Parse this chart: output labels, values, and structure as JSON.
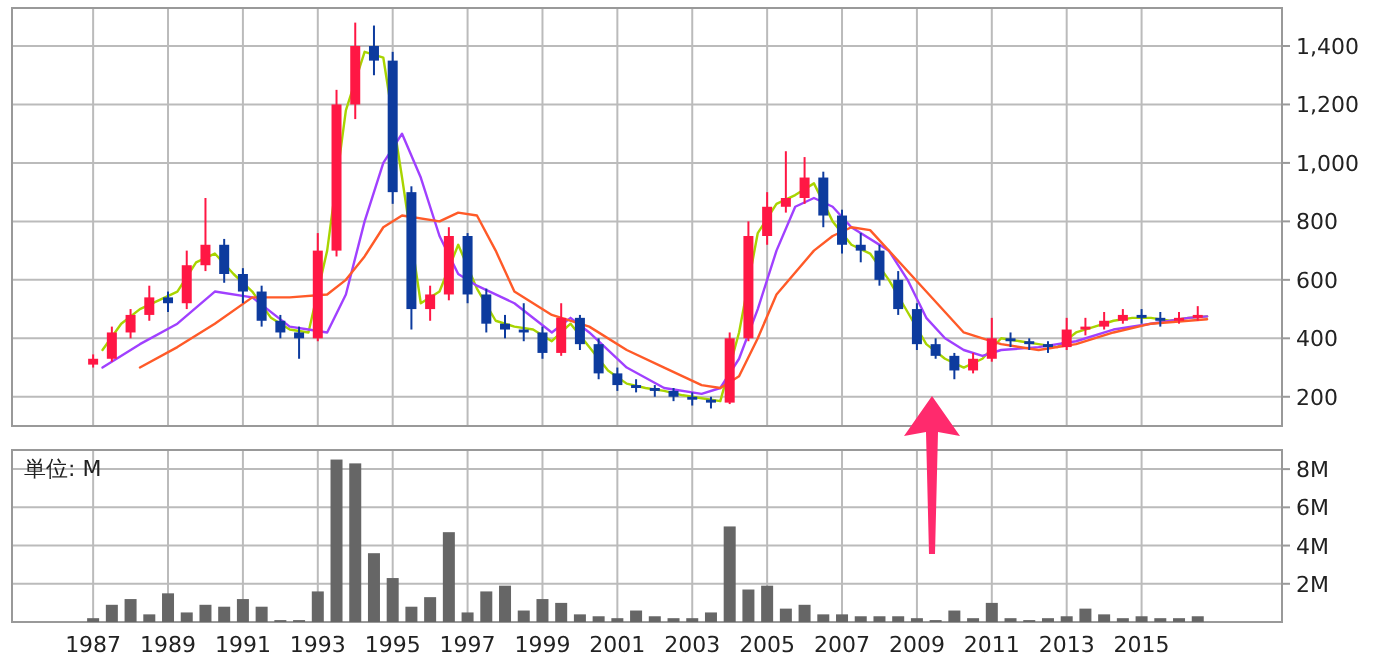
{
  "chart_data": [
    {
      "type": "candlestick",
      "tick_labels": "y",
      "grid": true,
      "xlim": [
        "1984-11",
        "2018-10"
      ],
      "xticks": [
        "1987",
        "1989",
        "1991",
        "1993",
        "1995",
        "1997",
        "1999",
        "2001",
        "2003",
        "2005",
        "2007",
        "2009",
        "2011",
        "2013",
        "2015"
      ],
      "ylim": [
        100,
        1530
      ],
      "yticks": [
        200,
        400,
        600,
        800,
        {
          "value": 1000,
          "label": "1,000"
        },
        {
          "value": 1200,
          "label": "1,200"
        },
        {
          "value": 1400,
          "label": "1,400"
        }
      ],
      "x": [
        "1987-01",
        "1987-07",
        "1988-01",
        "1988-07",
        "1989-01",
        "1989-07",
        "1990-01",
        "1990-07",
        "1991-01",
        "1991-07",
        "1992-01",
        "1992-07",
        "1993-01",
        "1993-07",
        "1994-01",
        "1994-07",
        "1995-01",
        "1995-07",
        "1996-01",
        "1996-07",
        "1997-01",
        "1997-07",
        "1998-01",
        "1998-07",
        "1999-01",
        "1999-07",
        "2000-01",
        "2000-07",
        "2001-01",
        "2001-07",
        "2002-01",
        "2002-07",
        "2003-01",
        "2003-07",
        "2004-01",
        "2004-07",
        "2005-01",
        "2005-07",
        "2006-01",
        "2006-07",
        "2007-01",
        "2007-07",
        "2008-01",
        "2008-07",
        "2009-01",
        "2009-07",
        "2010-01",
        "2010-07",
        "2011-01",
        "2011-07",
        "2012-01",
        "2012-07",
        "2013-01",
        "2013-07",
        "2014-01",
        "2014-07",
        "2015-01",
        "2015-07",
        "2016-01",
        "2016-07"
      ],
      "ohlc": [
        [
          310,
          345,
          300,
          330
        ],
        [
          330,
          440,
          320,
          420
        ],
        [
          420,
          500,
          400,
          480
        ],
        [
          480,
          580,
          460,
          540
        ],
        [
          540,
          560,
          490,
          520
        ],
        [
          520,
          700,
          500,
          650
        ],
        [
          650,
          880,
          630,
          720
        ],
        [
          720,
          740,
          590,
          620
        ],
        [
          620,
          640,
          520,
          560
        ],
        [
          560,
          580,
          440,
          460
        ],
        [
          460,
          480,
          400,
          420
        ],
        [
          420,
          440,
          330,
          400
        ],
        [
          400,
          760,
          390,
          700
        ],
        [
          700,
          1250,
          680,
          1200
        ],
        [
          1200,
          1480,
          1150,
          1400
        ],
        [
          1400,
          1470,
          1300,
          1350
        ],
        [
          1350,
          1380,
          860,
          900
        ],
        [
          900,
          920,
          430,
          500
        ],
        [
          500,
          580,
          460,
          550
        ],
        [
          550,
          780,
          530,
          750
        ],
        [
          750,
          760,
          520,
          550
        ],
        [
          550,
          570,
          420,
          450
        ],
        [
          450,
          480,
          400,
          430
        ],
        [
          430,
          520,
          390,
          420
        ],
        [
          420,
          440,
          330,
          350
        ],
        [
          350,
          520,
          340,
          470
        ],
        [
          470,
          480,
          360,
          380
        ],
        [
          380,
          400,
          260,
          280
        ],
        [
          280,
          300,
          220,
          240
        ],
        [
          240,
          260,
          215,
          230
        ],
        [
          230,
          240,
          200,
          220
        ],
        [
          220,
          230,
          185,
          200
        ],
        [
          200,
          215,
          170,
          190
        ],
        [
          190,
          200,
          160,
          180
        ],
        [
          180,
          420,
          175,
          400
        ],
        [
          400,
          800,
          390,
          750
        ],
        [
          750,
          900,
          720,
          850
        ],
        [
          850,
          1040,
          830,
          880
        ],
        [
          880,
          1020,
          860,
          950
        ],
        [
          950,
          970,
          780,
          820
        ],
        [
          820,
          840,
          690,
          720
        ],
        [
          720,
          760,
          660,
          700
        ],
        [
          700,
          720,
          580,
          600
        ],
        [
          600,
          630,
          480,
          500
        ],
        [
          500,
          520,
          360,
          380
        ],
        [
          380,
          400,
          330,
          340
        ],
        [
          340,
          350,
          260,
          290
        ],
        [
          290,
          350,
          280,
          330
        ],
        [
          330,
          470,
          320,
          400
        ],
        [
          400,
          420,
          370,
          390
        ],
        [
          390,
          400,
          360,
          380
        ],
        [
          380,
          390,
          350,
          370
        ],
        [
          370,
          470,
          360,
          430
        ],
        [
          430,
          470,
          410,
          440
        ],
        [
          440,
          490,
          430,
          460
        ],
        [
          460,
          500,
          450,
          480
        ],
        [
          480,
          500,
          450,
          470
        ],
        [
          470,
          490,
          440,
          460
        ],
        [
          460,
          490,
          450,
          470
        ],
        [
          470,
          510,
          460,
          480
        ]
      ],
      "colors": [
        "#ff1744",
        "#ff1744",
        "#ff1744",
        "#ff1744",
        "#0d3b9e",
        "#ff1744",
        "#ff1744",
        "#0d3b9e",
        "#0d3b9e",
        "#0d3b9e",
        "#0d3b9e",
        "#0d3b9e",
        "#ff1744",
        "#ff1744",
        "#ff1744",
        "#0d3b9e",
        "#0d3b9e",
        "#0d3b9e",
        "#ff1744",
        "#ff1744",
        "#0d3b9e",
        "#0d3b9e",
        "#0d3b9e",
        "#0d3b9e",
        "#0d3b9e",
        "#ff1744",
        "#0d3b9e",
        "#0d3b9e",
        "#0d3b9e",
        "#0d3b9e",
        "#0d3b9e",
        "#0d3b9e",
        "#0d3b9e",
        "#0d3b9e",
        "#ff1744",
        "#ff1744",
        "#ff1744",
        "#ff1744",
        "#ff1744",
        "#0d3b9e",
        "#0d3b9e",
        "#0d3b9e",
        "#0d3b9e",
        "#0d3b9e",
        "#0d3b9e",
        "#0d3b9e",
        "#0d3b9e",
        "#ff1744",
        "#ff1744",
        "#0d3b9e",
        "#0d3b9e",
        "#0d3b9e",
        "#ff1744",
        "#ff1744",
        "#ff1744",
        "#ff1744",
        "#0d3b9e",
        "#0d3b9e",
        "#ff1744",
        "#ff1744"
      ],
      "series": [
        {
          "type": "line",
          "color": "#a8d400",
          "x": [
            "1987-04",
            "1987-10",
            "1988-04",
            "1988-10",
            "1989-04",
            "1989-10",
            "1990-04",
            "1990-10",
            "1991-04",
            "1991-10",
            "1992-04",
            "1992-10",
            "1993-04",
            "1993-10",
            "1994-04",
            "1994-10",
            "1995-04",
            "1995-10",
            "1996-04",
            "1996-10",
            "1997-04",
            "1997-10",
            "1998-04",
            "1998-10",
            "1999-04",
            "1999-10",
            "2000-04",
            "2000-10",
            "2001-04",
            "2001-10",
            "2002-04",
            "2002-10",
            "2003-04",
            "2003-10",
            "2004-04",
            "2004-10",
            "2005-04",
            "2005-10",
            "2006-04",
            "2006-10",
            "2007-04",
            "2007-10",
            "2008-04",
            "2008-10",
            "2009-04",
            "2009-10",
            "2010-04",
            "2010-10",
            "2011-04",
            "2011-10",
            "2012-04",
            "2012-10",
            "2013-04",
            "2013-10",
            "2014-04",
            "2014-10",
            "2015-04",
            "2015-10",
            "2016-04",
            "2016-10"
          ],
          "values": [
            360,
            450,
            500,
            530,
            560,
            660,
            690,
            620,
            560,
            470,
            430,
            420,
            700,
            1180,
            1380,
            1360,
            950,
            520,
            560,
            720,
            570,
            460,
            440,
            430,
            390,
            450,
            370,
            290,
            245,
            230,
            220,
            205,
            195,
            185,
            420,
            760,
            860,
            890,
            930,
            800,
            720,
            690,
            600,
            490,
            380,
            330,
            300,
            330,
            400,
            390,
            380,
            370,
            420,
            440,
            460,
            470,
            470,
            460,
            470,
            475
          ]
        },
        {
          "type": "line",
          "color": "#a040ff",
          "x": [
            "1987-04",
            "1988-04",
            "1989-04",
            "1990-04",
            "1991-04",
            "1992-04",
            "1992-10",
            "1993-04",
            "1993-10",
            "1994-04",
            "1994-10",
            "1995-04",
            "1995-10",
            "1996-04",
            "1996-10",
            "1997-04",
            "1998-04",
            "1999-04",
            "1999-10",
            "2000-04",
            "2001-04",
            "2002-04",
            "2003-04",
            "2003-10",
            "2004-04",
            "2004-10",
            "2005-04",
            "2005-10",
            "2006-04",
            "2006-10",
            "2007-04",
            "2008-04",
            "2008-10",
            "2009-04",
            "2009-10",
            "2010-04",
            "2010-10",
            "2011-04",
            "2012-04",
            "2013-04",
            "2014-04",
            "2015-04",
            "2016-04",
            "2016-10"
          ],
          "values": [
            300,
            380,
            450,
            560,
            540,
            440,
            430,
            420,
            550,
            800,
            1000,
            1100,
            950,
            750,
            620,
            580,
            520,
            420,
            470,
            420,
            300,
            230,
            210,
            230,
            330,
            500,
            700,
            850,
            880,
            850,
            780,
            700,
            600,
            470,
            400,
            360,
            340,
            360,
            370,
            390,
            430,
            450,
            470,
            475
          ]
        },
        {
          "type": "line",
          "color": "#ff5a28",
          "x": [
            "1988-04",
            "1989-04",
            "1990-04",
            "1991-04",
            "1992-04",
            "1993-04",
            "1993-10",
            "1994-04",
            "1994-10",
            "1995-04",
            "1996-04",
            "1996-10",
            "1997-04",
            "1997-10",
            "1998-04",
            "1999-04",
            "2000-04",
            "2001-04",
            "2002-04",
            "2003-04",
            "2003-10",
            "2004-04",
            "2004-10",
            "2005-04",
            "2006-04",
            "2006-10",
            "2007-04",
            "2007-10",
            "2008-04",
            "2009-04",
            "2010-04",
            "2010-10",
            "2011-04",
            "2012-04",
            "2013-04",
            "2014-04",
            "2015-04",
            "2016-04",
            "2016-10"
          ],
          "values": [
            300,
            370,
            450,
            540,
            540,
            550,
            600,
            680,
            780,
            820,
            800,
            830,
            820,
            700,
            560,
            480,
            440,
            360,
            300,
            240,
            230,
            270,
            400,
            550,
            700,
            750,
            780,
            770,
            700,
            560,
            420,
            400,
            380,
            360,
            380,
            420,
            450,
            460,
            465
          ]
        }
      ]
    },
    {
      "type": "bar",
      "grid": true,
      "color": "#666666",
      "annotations": [
        "単位: M"
      ],
      "xlim": [
        "1984-11",
        "2018-10"
      ],
      "xticks": [
        "1987",
        "1989",
        "1991",
        "1993",
        "1995",
        "1997",
        "1999",
        "2001",
        "2003",
        "2005",
        "2007",
        "2009",
        "2011",
        "2013",
        "2015"
      ],
      "ylim": [
        0,
        9
      ],
      "yticks": [
        {
          "value": 2,
          "label": "2M"
        },
        {
          "value": 4,
          "label": "4M"
        },
        {
          "value": 6,
          "label": "6M"
        },
        {
          "value": 8,
          "label": "8M"
        }
      ],
      "x": [
        "1987-01",
        "1987-07",
        "1988-01",
        "1988-07",
        "1989-01",
        "1989-07",
        "1990-01",
        "1990-07",
        "1991-01",
        "1991-07",
        "1992-01",
        "1992-07",
        "1993-01",
        "1993-07",
        "1994-01",
        "1994-07",
        "1995-01",
        "1995-07",
        "1996-01",
        "1996-07",
        "1997-01",
        "1997-07",
        "1998-01",
        "1998-07",
        "1999-01",
        "1999-07",
        "2000-01",
        "2000-07",
        "2001-01",
        "2001-07",
        "2002-01",
        "2002-07",
        "2003-01",
        "2003-07",
        "2004-01",
        "2004-07",
        "2005-01",
        "2005-07",
        "2006-01",
        "2006-07",
        "2007-01",
        "2007-07",
        "2008-01",
        "2008-07",
        "2009-01",
        "2009-07",
        "2010-01",
        "2010-07",
        "2011-01",
        "2011-07",
        "2012-01",
        "2012-07",
        "2013-01",
        "2013-07",
        "2014-01",
        "2014-07",
        "2015-01",
        "2015-07",
        "2016-01",
        "2016-07"
      ],
      "values": [
        0.2,
        0.9,
        1.2,
        0.4,
        1.5,
        0.5,
        0.9,
        0.8,
        1.2,
        0.8,
        0.1,
        0.1,
        1.6,
        8.5,
        8.3,
        3.6,
        2.3,
        0.8,
        1.3,
        4.7,
        0.5,
        1.6,
        1.9,
        0.6,
        1.2,
        1.0,
        0.4,
        0.3,
        0.2,
        0.6,
        0.3,
        0.2,
        0.2,
        0.5,
        5.0,
        1.7,
        1.9,
        0.7,
        0.9,
        0.4,
        0.4,
        0.3,
        0.3,
        0.3,
        0.2,
        0.1,
        0.6,
        0.2,
        1.0,
        0.2,
        0.1,
        0.2,
        0.3,
        0.7,
        0.4,
        0.2,
        0.3,
        0.2,
        0.2,
        0.3
      ]
    }
  ]
}
